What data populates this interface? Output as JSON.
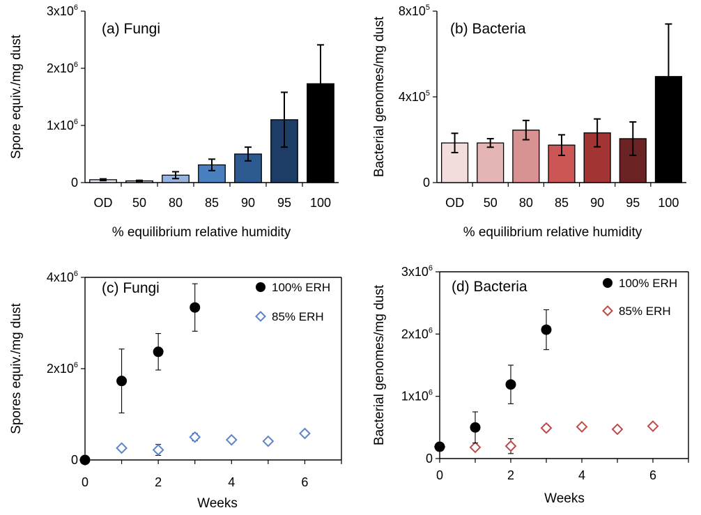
{
  "chart_data": [
    {
      "id": "a",
      "type": "bar",
      "title": "(a) Fungi",
      "xlabel": "% equilibrium relative humidity",
      "ylabel": "Spore equiv./mg dust",
      "categories": [
        "OD",
        "50",
        "80",
        "85",
        "90",
        "95",
        "100"
      ],
      "values": [
        50000,
        30000,
        130000,
        310000,
        500000,
        1100000,
        1730000
      ],
      "errors": [
        15000,
        10000,
        60000,
        100000,
        120000,
        480000,
        680000
      ],
      "colors": [
        "#dfe6f2",
        "#c4d3ea",
        "#97b4dc",
        "#4a7fc0",
        "#2e5a92",
        "#1e3d66",
        "#000000"
      ],
      "ylim": [
        0,
        3000000
      ],
      "yticks": [
        {
          "value": 0,
          "base": "0",
          "exp": ""
        },
        {
          "value": 1000000,
          "base": "1x10",
          "exp": "6"
        },
        {
          "value": 2000000,
          "base": "2x10",
          "exp": "6"
        },
        {
          "value": 3000000,
          "base": "3x10",
          "exp": "6"
        }
      ]
    },
    {
      "id": "b",
      "type": "bar",
      "title": "(b) Bacteria",
      "xlabel": "% equilibrium relative humidity",
      "ylabel": "Bacterial genomes/mg dust",
      "categories": [
        "OD",
        "50",
        "80",
        "85",
        "90",
        "95",
        "100"
      ],
      "values": [
        185000,
        185000,
        245000,
        175000,
        232000,
        205000,
        495000
      ],
      "errors": [
        45000,
        20000,
        45000,
        48000,
        65000,
        78000,
        245000
      ],
      "colors": [
        "#f2dcdc",
        "#e6b5b5",
        "#d99292",
        "#cc5555",
        "#a33535",
        "#6b2222",
        "#000000"
      ],
      "ylim": [
        0,
        800000
      ],
      "yticks": [
        {
          "value": 0,
          "base": "0",
          "exp": ""
        },
        {
          "value": 400000,
          "base": "4x10",
          "exp": "5"
        },
        {
          "value": 800000,
          "base": "8x10",
          "exp": "5"
        }
      ]
    },
    {
      "id": "c",
      "type": "scatter",
      "title": "(c) Fungi",
      "xlabel": "Weeks",
      "ylabel": "Spores equiv./mg dust",
      "xlim": [
        0,
        7
      ],
      "xticks": [
        0,
        2,
        4,
        6
      ],
      "ylim": [
        0,
        4000000
      ],
      "yticks": [
        {
          "value": 0,
          "base": "0",
          "exp": ""
        },
        {
          "value": 2000000,
          "base": "2x10",
          "exp": "6"
        },
        {
          "value": 4000000,
          "base": "4x10",
          "exp": "6"
        }
      ],
      "series": [
        {
          "name": "100% ERH",
          "marker": "circle",
          "color": "#000000",
          "x": [
            0,
            1,
            2,
            3
          ],
          "y": [
            0,
            1730000,
            2370000,
            3340000
          ],
          "err": [
            0,
            700000,
            400000,
            520000
          ]
        },
        {
          "name": "85% ERH",
          "marker": "diamond",
          "color": "#5b85c5",
          "x": [
            0,
            1,
            2,
            3,
            4,
            5,
            6
          ],
          "y": [
            0,
            260000,
            220000,
            500000,
            440000,
            410000,
            580000
          ],
          "err": [
            0,
            0,
            120000,
            80000,
            60000,
            50000,
            0
          ]
        }
      ]
    },
    {
      "id": "d",
      "type": "scatter",
      "title": "(d) Bacteria",
      "xlabel": "Weeks",
      "ylabel": "Bacterial genomes/mg dust",
      "xlim": [
        0,
        7
      ],
      "xticks": [
        0,
        2,
        4,
        6
      ],
      "ylim": [
        0,
        3000000
      ],
      "yticks": [
        {
          "value": 0,
          "base": "0",
          "exp": ""
        },
        {
          "value": 1000000,
          "base": "1x10",
          "exp": "6"
        },
        {
          "value": 2000000,
          "base": "2x10",
          "exp": "6"
        },
        {
          "value": 3000000,
          "base": "3x10",
          "exp": "6"
        }
      ],
      "series": [
        {
          "name": "100% ERH",
          "marker": "circle",
          "color": "#000000",
          "x": [
            0,
            1,
            2,
            3
          ],
          "y": [
            190000,
            500000,
            1190000,
            2070000
          ],
          "err": [
            0,
            250000,
            310000,
            320000
          ]
        },
        {
          "name": "85% ERH",
          "marker": "diamond",
          "color": "#c04a4a",
          "x": [
            0,
            1,
            2,
            3,
            4,
            5,
            6
          ],
          "y": [
            190000,
            180000,
            200000,
            490000,
            510000,
            470000,
            520000
          ],
          "err": [
            0,
            0,
            120000,
            50000,
            40000,
            40000,
            0
          ]
        }
      ]
    }
  ]
}
